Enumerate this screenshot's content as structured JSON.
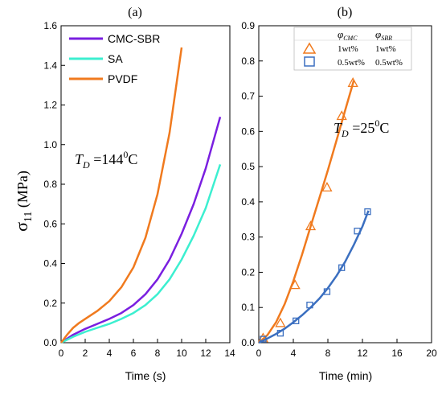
{
  "colors": {
    "cmc_sbr": "#7a1fe0",
    "sa": "#3cefd0",
    "pvdf": "#f07a1e",
    "blue": "#3b6fc0"
  },
  "chart_data": [
    {
      "id": "a",
      "type": "line",
      "panel_label": "(a)",
      "xlabel": "Time (s)",
      "ylabel_main": "σ",
      "ylabel_sub": "11",
      "ylabel_unit": " (MPa)",
      "xlim": [
        0,
        14
      ],
      "ylim": [
        0,
        1.6
      ],
      "xticks": [
        "0",
        "2",
        "4",
        "6",
        "8",
        "10",
        "12",
        "14"
      ],
      "yticks": [
        "0.0",
        "0.2",
        "0.4",
        "0.6",
        "0.8",
        "1.0",
        "1.2",
        "1.4",
        "1.6"
      ],
      "annotation": {
        "var": "T",
        "sub": "D",
        "text": " =144",
        "sup": "0",
        "unit": "C"
      },
      "series": [
        {
          "name": "CMC-SBR",
          "color": "#7a1fe0",
          "x": [
            0,
            1,
            2,
            3,
            4,
            5,
            6,
            7,
            8,
            9,
            10,
            11,
            12,
            13.2
          ],
          "y": [
            0,
            0.04,
            0.07,
            0.095,
            0.12,
            0.15,
            0.19,
            0.245,
            0.32,
            0.42,
            0.55,
            0.7,
            0.88,
            1.14
          ]
        },
        {
          "name": "SA",
          "color": "#3cefd0",
          "x": [
            0,
            1,
            2,
            3,
            4,
            5,
            6,
            7,
            8,
            9,
            10,
            11,
            12,
            13.2
          ],
          "y": [
            0,
            0.03,
            0.055,
            0.075,
            0.095,
            0.12,
            0.15,
            0.19,
            0.245,
            0.32,
            0.42,
            0.54,
            0.68,
            0.9
          ]
        },
        {
          "name": "PVDF",
          "color": "#f07a1e",
          "x": [
            0,
            0.5,
            1,
            1.5,
            2,
            3,
            4,
            5,
            6,
            7,
            8,
            9,
            10
          ],
          "y": [
            0,
            0.04,
            0.075,
            0.1,
            0.12,
            0.16,
            0.21,
            0.28,
            0.38,
            0.53,
            0.75,
            1.06,
            1.49
          ]
        }
      ]
    },
    {
      "id": "b",
      "type": "scatter",
      "panel_label": "(b)",
      "xlabel": "Time (min)",
      "xlim": [
        0,
        20
      ],
      "ylim": [
        0,
        0.9
      ],
      "xticks": [
        "0",
        "4",
        "8",
        "12",
        "16",
        "20"
      ],
      "yticks": [
        "0.0",
        "0.1",
        "0.2",
        "0.3",
        "0.4",
        "0.5",
        "0.6",
        "0.7",
        "0.8",
        "0.9"
      ],
      "annotation": {
        "var": "T",
        "sub": "D",
        "text": " =25",
        "sup": "0",
        "unit": "C"
      },
      "legend_table": {
        "header_cmc_var": "φ",
        "header_cmc_sub": "CMC",
        "header_sbr_var": "φ",
        "header_sbr_sub": "SBR",
        "rows": [
          {
            "cmc": "1wt%",
            "sbr": "1wt%"
          },
          {
            "cmc": "0.5wt%",
            "sbr": "0.5wt%"
          }
        ]
      },
      "series": [
        {
          "name": "1wt%",
          "color": "#f07a1e",
          "marker": "triangle",
          "x": [
            0.5,
            2.5,
            4.2,
            6,
            7.9,
            9.6,
            10.9
          ],
          "y": [
            0.012,
            0.055,
            0.163,
            0.33,
            0.44,
            0.643,
            0.737
          ],
          "fit_x": [
            0,
            1,
            2,
            3,
            4,
            5,
            6,
            7,
            8,
            9,
            10,
            11
          ],
          "fit_y": [
            0,
            0.022,
            0.058,
            0.11,
            0.175,
            0.25,
            0.33,
            0.41,
            0.49,
            0.575,
            0.66,
            0.745
          ]
        },
        {
          "name": "0.5wt%",
          "color": "#3b6fc0",
          "marker": "square",
          "x": [
            0.5,
            2.5,
            4.3,
            5.9,
            7.9,
            9.6,
            11.4,
            12.6
          ],
          "y": [
            0.01,
            0.027,
            0.062,
            0.107,
            0.145,
            0.213,
            0.317,
            0.372
          ],
          "fit_x": [
            0,
            1,
            2,
            3,
            4,
            5,
            6,
            7,
            8,
            9,
            10,
            11,
            12,
            12.7
          ],
          "fit_y": [
            0,
            0.012,
            0.025,
            0.04,
            0.058,
            0.078,
            0.1,
            0.125,
            0.155,
            0.19,
            0.23,
            0.278,
            0.33,
            0.375
          ]
        }
      ]
    }
  ]
}
